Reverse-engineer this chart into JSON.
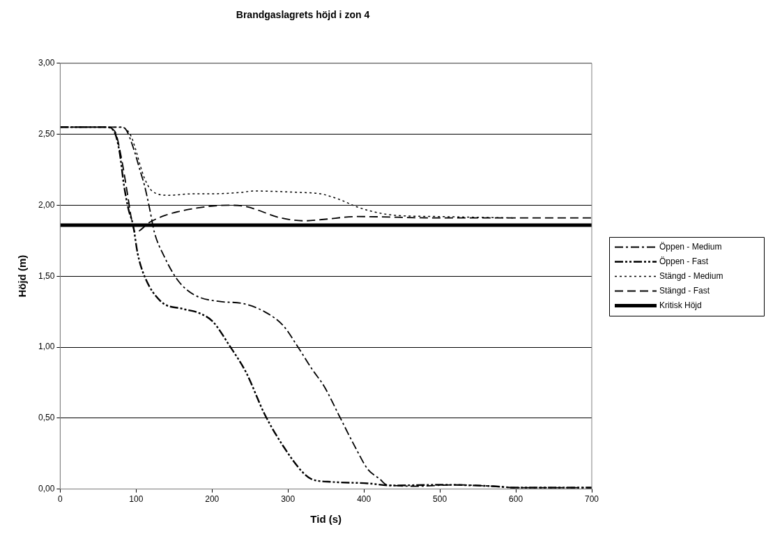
{
  "chart_data": {
    "type": "line",
    "title": "Brandgaslagrets höjd i zon 4",
    "xlabel": "Tid (s)",
    "ylabel": "Höjd (m)",
    "xlim": [
      0,
      700
    ],
    "xticks": [
      0,
      100,
      200,
      300,
      400,
      500,
      600,
      700
    ],
    "ylim": [
      0,
      3
    ],
    "yticks": [
      {
        "value": 0,
        "label": "0,00"
      },
      {
        "value": 0.5,
        "label": "0,50"
      },
      {
        "value": 1,
        "label": "1,00"
      },
      {
        "value": 1.5,
        "label": "1,50"
      },
      {
        "value": 2,
        "label": "2,00"
      },
      {
        "value": 2.5,
        "label": "2,50"
      },
      {
        "value": 3,
        "label": "3,00"
      }
    ],
    "grid": "y",
    "legend": "right",
    "marker": "none",
    "series": [
      {
        "name": "Öppen - Medium",
        "color": "#000000",
        "line_style": "dashed",
        "x": [
          0,
          65,
          82,
          87,
          96,
          106,
          111,
          118,
          124,
          136,
          155,
          176,
          213,
          238,
          269,
          294,
          312,
          331,
          348,
          368,
          390,
          405,
          421,
          430,
          470,
          520,
          570,
          600,
          700
        ],
        "values": [
          2.55,
          2.55,
          2.55,
          2.53,
          2.41,
          2.23,
          2.14,
          1.97,
          1.81,
          1.65,
          1.47,
          1.37,
          1.32,
          1.31,
          1.25,
          1.15,
          1.01,
          0.85,
          0.72,
          0.51,
          0.28,
          0.14,
          0.07,
          0.03,
          0.02,
          0.03,
          0.02,
          0.01,
          0.01
        ]
      },
      {
        "name": "Öppen - Fast",
        "color": "#000000",
        "line_style": "dashed",
        "x": [
          0,
          60,
          71,
          78,
          84,
          90,
          96,
          102,
          111,
          133,
          161,
          183,
          201,
          223,
          245,
          269,
          294,
          319,
          331,
          359,
          405,
          436,
          500,
          570,
          600,
          700
        ],
        "values": [
          2.55,
          2.55,
          2.52,
          2.38,
          2.14,
          1.97,
          1.86,
          1.66,
          1.5,
          1.32,
          1.27,
          1.24,
          1.18,
          1.01,
          0.82,
          0.53,
          0.3,
          0.12,
          0.07,
          0.05,
          0.04,
          0.025,
          0.03,
          0.02,
          0.01,
          0.01
        ]
      },
      {
        "name": "Stängd - Medium",
        "color": "#000000",
        "line_style": "dotted",
        "x": [
          0,
          75,
          81,
          93,
          99,
          106,
          111,
          121,
          143,
          173,
          192,
          238,
          254,
          315,
          343,
          368,
          390,
          408,
          439,
          500,
          600
        ],
        "values": [
          2.55,
          2.55,
          2.55,
          2.49,
          2.4,
          2.27,
          2.19,
          2.1,
          2.07,
          2.08,
          2.08,
          2.09,
          2.1,
          2.09,
          2.08,
          2.04,
          1.99,
          1.96,
          1.93,
          1.92,
          1.91
        ]
      },
      {
        "name": "Stängd - Fast",
        "color": "#000000",
        "line_style": "dashed",
        "x": [
          0,
          60,
          72,
          80,
          88,
          94,
          99,
          118,
          139,
          180,
          223,
          245,
          291,
          322,
          347,
          390,
          500,
          700
        ],
        "values": [
          2.55,
          2.55,
          2.52,
          2.35,
          2.1,
          1.9,
          1.81,
          1.88,
          1.93,
          1.98,
          2.0,
          1.99,
          1.91,
          1.89,
          1.9,
          1.92,
          1.91,
          1.91
        ]
      },
      {
        "name": "Kritisk Höjd",
        "color": "#000000",
        "line_style": "solid",
        "x": [
          0,
          700
        ],
        "values": [
          1.86,
          1.86
        ]
      }
    ]
  }
}
